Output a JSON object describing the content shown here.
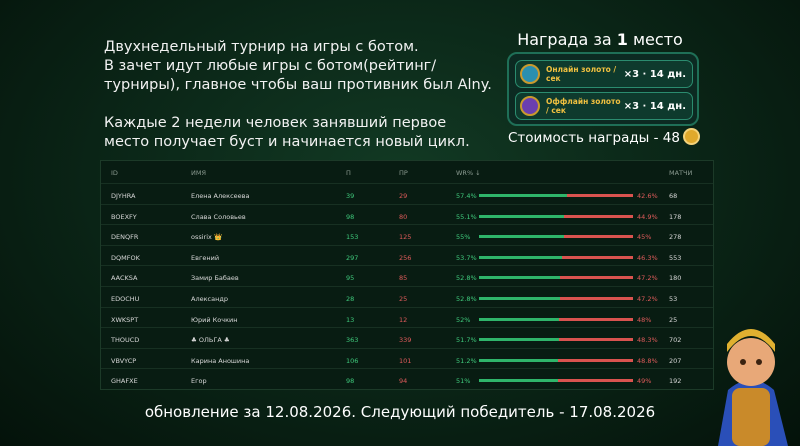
{
  "intro": [
    [
      "Двухнедельный турнир на игры с ботом.",
      "В зачет идут любые игры с ботом(рейтинг/",
      "турниры), главное чтобы ваш противник был Alny."
    ],
    [
      "Каждые 2 недели человек занявший первое",
      "место получает буст и начинается новый цикл."
    ]
  ],
  "reward": {
    "title_before": "Награда за",
    "place": "1",
    "title_after": "место",
    "items": [
      {
        "label": "Онлайн золото / сек",
        "bonus": "×3 · 14 дн."
      },
      {
        "label": "Оффлайн золото / сек",
        "bonus": "×3 · 14 дн."
      }
    ],
    "cost": "Стоимость награды - 48"
  },
  "table": {
    "headers": [
      "ID",
      "ИМЯ",
      "П",
      "ПР",
      "WR% ↓",
      "МАТЧИ"
    ],
    "rows": [
      {
        "id": "DJYHRA",
        "name": "Елена Алексеева",
        "wins": 39,
        "losses": 29,
        "wr": 57.4,
        "wr_label": "57.4%",
        "lr": 42.6,
        "lr_label": "42.6%",
        "matches": 68
      },
      {
        "id": "BOEXFY",
        "name": "Слава Соловьев",
        "wins": 98,
        "losses": 80,
        "wr": 55.1,
        "wr_label": "55.1%",
        "lr": 44.9,
        "lr_label": "44.9%",
        "matches": 178
      },
      {
        "id": "DENQFR",
        "name": "ossirix 👑",
        "wins": 153,
        "losses": 125,
        "wr": 55,
        "wr_label": "55%",
        "lr": 45,
        "lr_label": "45%",
        "matches": 278
      },
      {
        "id": "DQMFOK",
        "name": "Евгений",
        "wins": 297,
        "losses": 256,
        "wr": 53.7,
        "wr_label": "53.7%",
        "lr": 46.3,
        "lr_label": "46.3%",
        "matches": 553
      },
      {
        "id": "AACKSA",
        "name": "Замир Бабаев",
        "wins": 95,
        "losses": 85,
        "wr": 52.8,
        "wr_label": "52.8%",
        "lr": 47.2,
        "lr_label": "47.2%",
        "matches": 180
      },
      {
        "id": "EDOCHU",
        "name": "Александр",
        "wins": 28,
        "losses": 25,
        "wr": 52.8,
        "wr_label": "52.8%",
        "lr": 47.2,
        "lr_label": "47.2%",
        "matches": 53
      },
      {
        "id": "XWKSPT",
        "name": "Юрий Кочкин",
        "wins": 13,
        "losses": 12,
        "wr": 52,
        "wr_label": "52%",
        "lr": 48,
        "lr_label": "48%",
        "matches": 25
      },
      {
        "id": "THOUCD",
        "name": "♣ ОЛЬГА ♣",
        "wins": 363,
        "losses": 339,
        "wr": 51.7,
        "wr_label": "51.7%",
        "lr": 48.3,
        "lr_label": "48.3%",
        "matches": 702
      },
      {
        "id": "VBVYCP",
        "name": "Карина Аношина",
        "wins": 106,
        "losses": 101,
        "wr": 51.2,
        "wr_label": "51.2%",
        "lr": 48.8,
        "lr_label": "48.8%",
        "matches": 207
      },
      {
        "id": "GHAFXE",
        "name": "Егор",
        "wins": 98,
        "losses": 94,
        "wr": 51,
        "wr_label": "51%",
        "lr": 49,
        "lr_label": "49%",
        "matches": 192
      }
    ]
  },
  "footer": "обновление за 12.08.2026. Следующий победитель - 17.08.2026"
}
